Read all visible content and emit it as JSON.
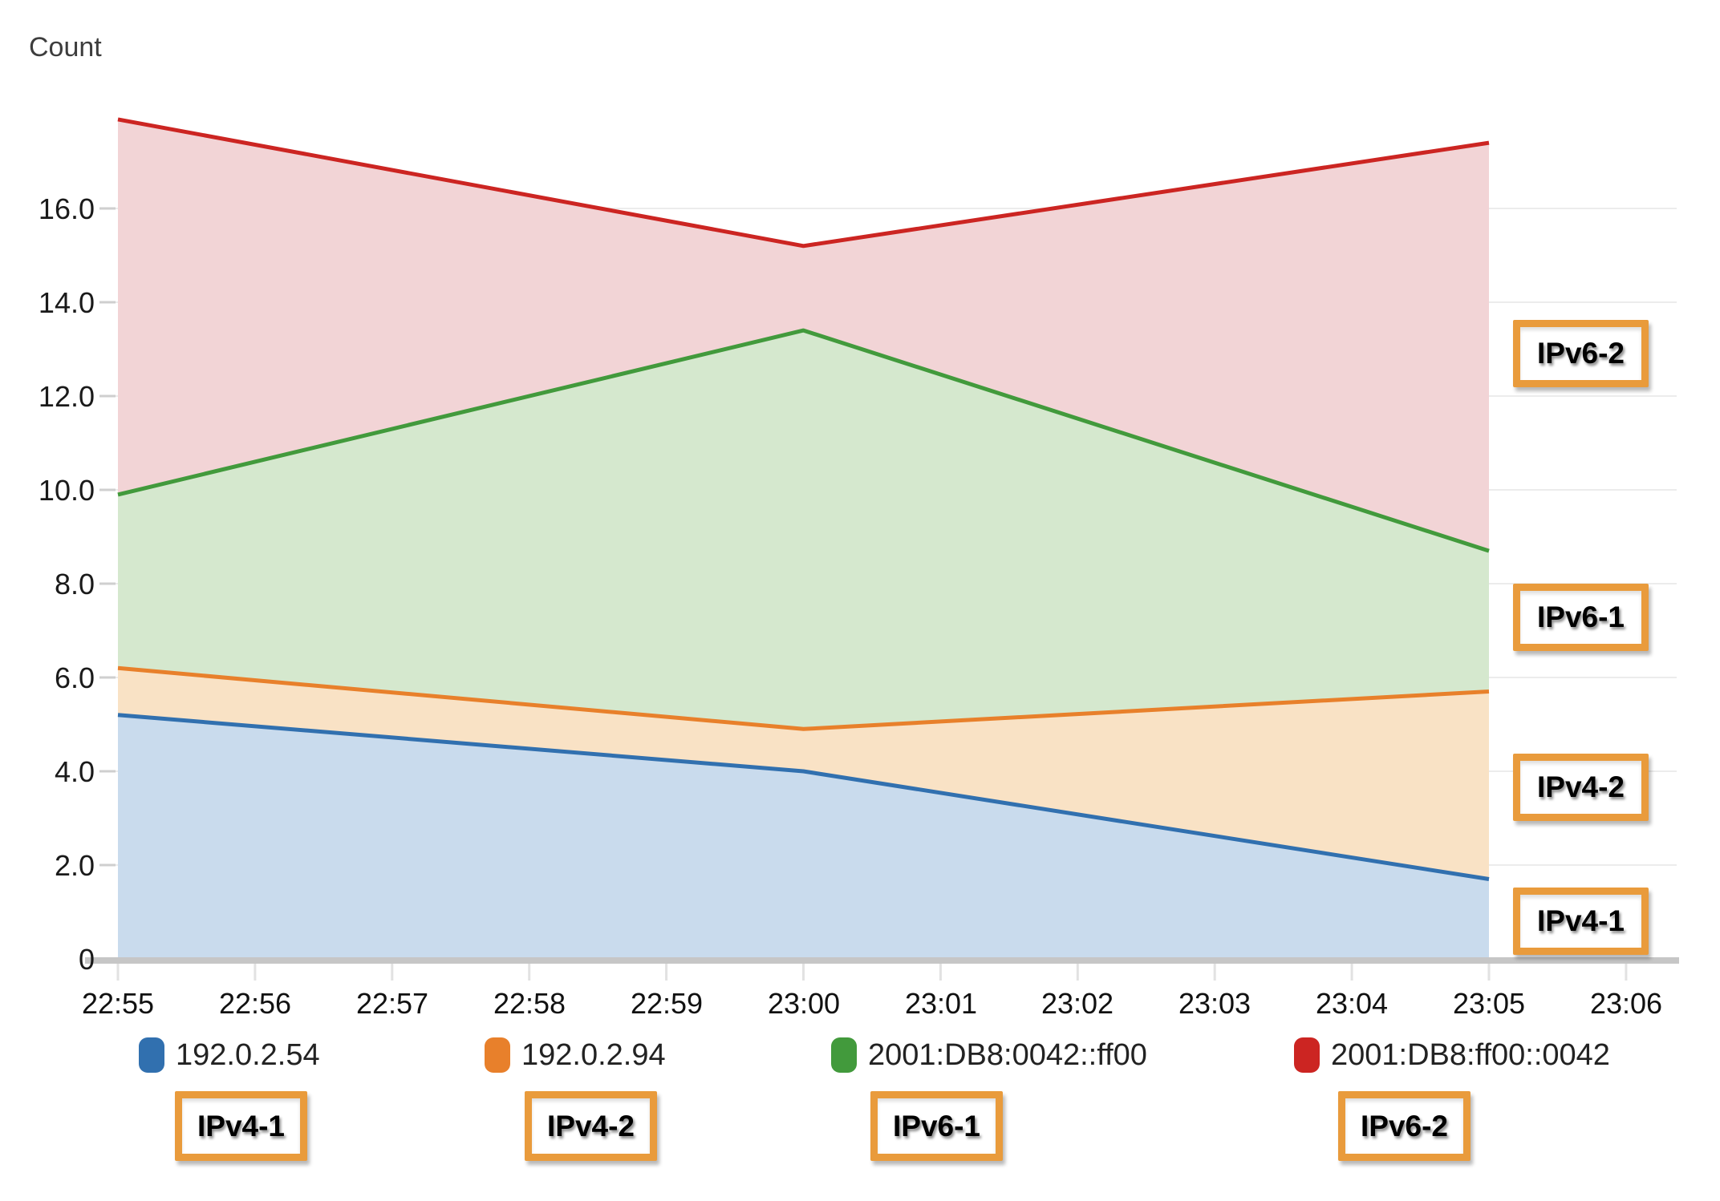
{
  "chart_data": {
    "type": "area",
    "stacked": true,
    "title": "",
    "ylabel": "Count",
    "xlabel": "",
    "x_labels": [
      "22:55",
      "22:56",
      "22:57",
      "22:58",
      "22:59",
      "23:00",
      "23:01",
      "23:02",
      "23:03",
      "23:04",
      "23:05",
      "23:06"
    ],
    "y_ticks": [
      "16.0",
      "14.0",
      "12.0",
      "10.0",
      "8.0",
      "6.0",
      "4.0",
      "2.0",
      "0"
    ],
    "ylim": [
      0,
      18.7
    ],
    "grid": "horizontal-only",
    "legend_position": "bottom",
    "anchor_x_labels": [
      "22:55",
      "23:00",
      "23:05"
    ],
    "anchor_x_minutes": [
      0,
      5,
      10
    ],
    "series": [
      {
        "name": "192.0.2.54",
        "annotation_label": "IPv4-1",
        "color": "#3170af",
        "fill": "#c9dbed",
        "values": [
          5.2,
          4.0,
          1.7
        ],
        "cumulative": [
          5.2,
          4.0,
          1.7
        ]
      },
      {
        "name": "192.0.2.94",
        "annotation_label": "IPv4-2",
        "color": "#e8802b",
        "fill": "#f9e2c5",
        "values": [
          1.0,
          0.9,
          4.0
        ],
        "cumulative": [
          6.2,
          4.9,
          5.7
        ]
      },
      {
        "name": "2001:DB8:0042::ff00",
        "annotation_label": "IPv6-1",
        "color": "#429a3c",
        "fill": "#d5e8ce",
        "values": [
          3.7,
          8.5,
          3.0
        ],
        "cumulative": [
          9.9,
          13.4,
          8.7
        ]
      },
      {
        "name": "2001:DB8:ff00::0042",
        "annotation_label": "IPv6-2",
        "color": "#cc2522",
        "fill": "#f2d4d6",
        "values": [
          8.0,
          1.8,
          8.7
        ],
        "cumulative": [
          17.9,
          15.2,
          17.4
        ]
      }
    ]
  },
  "annotations": {
    "border_color": "#e99b3c",
    "right": [
      "IPv6-2",
      "IPv6-1",
      "IPv4-2",
      "IPv4-1"
    ],
    "bottom": [
      "IPv4-1",
      "IPv4-2",
      "IPv6-1",
      "IPv6-2"
    ]
  }
}
